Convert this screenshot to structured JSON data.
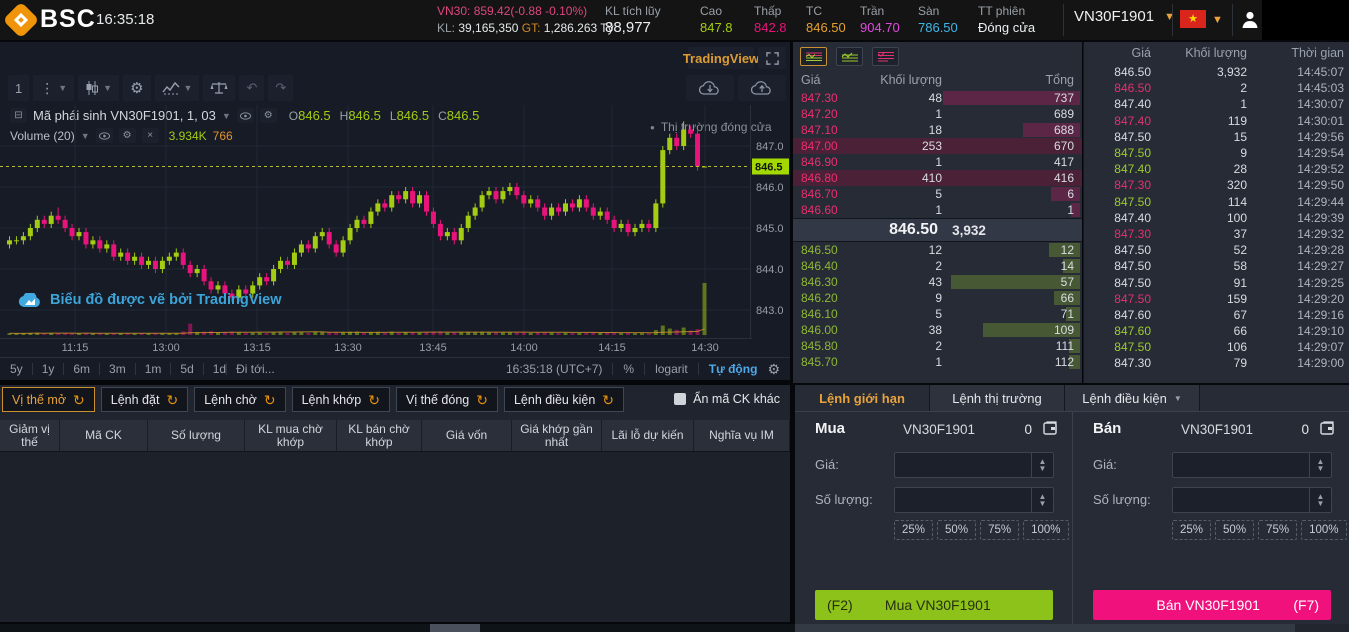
{
  "colors": {
    "up": "#a3cc12",
    "down": "#e9137c",
    "accent_orange": "#e8a33d",
    "link_blue": "#45a7e2",
    "buy_button": "#8dc21a",
    "sell_button": "#f0117d",
    "last_price_label": "#a3d900"
  },
  "topbar": {
    "brand": "BSC",
    "clock": "16:35:18",
    "index": {
      "label": "VN30:",
      "value": "859.42(-0.88 -0.10%)",
      "kl_label": "KL:",
      "kl_value": "39,165,350",
      "gt_label": "GT:",
      "gt_value": "1,286.263 Tỷ"
    },
    "stats": [
      {
        "label": "KL tích lũy",
        "value": "88,977",
        "color": "#eceff1",
        "big": true
      },
      {
        "label": "Cao",
        "value": "847.8",
        "color": "#a3cc12"
      },
      {
        "label": "Thấp",
        "value": "842.8",
        "color": "#e9137c"
      },
      {
        "label": "TC",
        "value": "846.50",
        "color": "#e5a12f"
      },
      {
        "label": "Trần",
        "value": "904.70",
        "color": "#e14ae1"
      },
      {
        "label": "Sàn",
        "value": "786.50",
        "color": "#3eb7e8"
      },
      {
        "label": "TT phiên",
        "value": "Đóng cửa",
        "color": "#eceff1"
      }
    ],
    "symbol_select": "VN30F1901"
  },
  "chart": {
    "badge": "TradingView",
    "interval_button": "1",
    "legend_title": "Mã phái sinh VN30F1901, 1, 03",
    "ohlc": [
      {
        "k": "O",
        "v": "846.5"
      },
      {
        "k": "H",
        "v": "846.5"
      },
      {
        "k": "L",
        "v": "846.5"
      },
      {
        "k": "C",
        "v": "846.5"
      }
    ],
    "volume_label": "Volume (20)",
    "volume_value": "3.934K",
    "volume_ma": "766",
    "market_status": "Thị trường đóng cửa",
    "watermark": "Biểu đồ được vẽ bởi TradingView",
    "footer_ranges": [
      "5y",
      "1y",
      "6m",
      "3m",
      "1m",
      "5d",
      "1d"
    ],
    "footer_goto": "Đi tới...",
    "footer_clock": "16:35:18 (UTC+7)",
    "footer_percent": "%",
    "footer_log": "logarit",
    "footer_auto": "Tự động"
  },
  "chart_data": {
    "type": "candlestick",
    "symbol": "VN30F1901",
    "interval": "1",
    "last_price": 846.5,
    "y_ticks": [
      847.0,
      846.0,
      845.0,
      844.0,
      843.0
    ],
    "x_ticks": [
      {
        "label": "11:15",
        "x": 75
      },
      {
        "label": "13:00",
        "x": 166
      },
      {
        "label": "13:15",
        "x": 257
      },
      {
        "label": "13:30",
        "x": 348
      },
      {
        "label": "13:45",
        "x": 433
      },
      {
        "label": "14:00",
        "x": 524
      },
      {
        "label": "14:15",
        "x": 612
      },
      {
        "label": "14:30",
        "x": 705
      }
    ],
    "candles": [
      [
        844.6,
        844.8,
        844.5,
        844.7,
        60
      ],
      [
        844.7,
        844.8,
        844.6,
        844.7,
        40
      ],
      [
        844.7,
        844.9,
        844.6,
        844.8,
        55
      ],
      [
        844.8,
        845.1,
        844.7,
        845.0,
        80
      ],
      [
        845.0,
        845.3,
        844.9,
        845.2,
        90
      ],
      [
        845.2,
        845.3,
        845.0,
        845.1,
        50
      ],
      [
        845.1,
        845.4,
        845.0,
        845.3,
        70
      ],
      [
        845.3,
        845.5,
        845.1,
        845.2,
        60
      ],
      [
        845.2,
        845.3,
        844.9,
        845.0,
        65
      ],
      [
        845.0,
        845.1,
        844.7,
        844.8,
        70
      ],
      [
        844.8,
        845.0,
        844.7,
        844.9,
        45
      ],
      [
        844.9,
        845.0,
        844.5,
        844.6,
        80
      ],
      [
        844.6,
        844.8,
        844.5,
        844.7,
        40
      ],
      [
        844.7,
        844.8,
        844.4,
        844.5,
        55
      ],
      [
        844.5,
        844.7,
        844.4,
        844.6,
        35
      ],
      [
        844.6,
        844.7,
        844.2,
        844.3,
        75
      ],
      [
        844.3,
        844.5,
        844.2,
        844.4,
        40
      ],
      [
        844.4,
        844.5,
        844.1,
        844.2,
        60
      ],
      [
        844.2,
        844.4,
        844.1,
        844.3,
        35
      ],
      [
        844.3,
        844.4,
        844.0,
        844.1,
        55
      ],
      [
        844.1,
        844.3,
        844.0,
        844.2,
        40
      ],
      [
        844.2,
        844.3,
        843.9,
        844.0,
        65
      ],
      [
        844.0,
        844.3,
        843.9,
        844.2,
        50
      ],
      [
        844.2,
        844.4,
        844.1,
        844.3,
        45
      ],
      [
        844.3,
        844.5,
        844.2,
        844.4,
        40
      ],
      [
        844.4,
        844.5,
        844.0,
        844.1,
        200
      ],
      [
        844.1,
        844.2,
        843.8,
        843.9,
        800
      ],
      [
        843.9,
        844.1,
        843.8,
        844.0,
        150
      ],
      [
        844.0,
        844.1,
        843.6,
        843.7,
        180
      ],
      [
        843.7,
        843.8,
        843.4,
        843.5,
        220
      ],
      [
        843.5,
        843.7,
        843.4,
        843.6,
        120
      ],
      [
        843.6,
        843.7,
        843.3,
        843.4,
        160
      ],
      [
        843.4,
        843.5,
        843.2,
        843.3,
        190
      ],
      [
        843.3,
        843.6,
        843.2,
        843.5,
        140
      ],
      [
        843.5,
        843.6,
        843.3,
        843.4,
        90
      ],
      [
        843.4,
        843.7,
        843.3,
        843.6,
        100
      ],
      [
        843.6,
        843.9,
        843.5,
        843.8,
        110
      ],
      [
        843.8,
        843.9,
        843.6,
        843.7,
        70
      ],
      [
        843.7,
        844.1,
        843.6,
        844.0,
        120
      ],
      [
        844.0,
        844.3,
        843.9,
        844.2,
        130
      ],
      [
        844.2,
        844.3,
        844.0,
        844.1,
        80
      ],
      [
        844.1,
        844.5,
        844.0,
        844.4,
        140
      ],
      [
        844.4,
        844.7,
        844.3,
        844.6,
        150
      ],
      [
        844.6,
        844.7,
        844.4,
        844.5,
        90
      ],
      [
        844.5,
        844.9,
        844.4,
        844.8,
        160
      ],
      [
        844.8,
        845.0,
        844.7,
        844.9,
        170
      ],
      [
        844.9,
        845.0,
        844.5,
        844.6,
        110
      ],
      [
        844.6,
        844.7,
        844.3,
        844.4,
        130
      ],
      [
        844.4,
        844.8,
        844.3,
        844.7,
        140
      ],
      [
        844.7,
        845.1,
        844.6,
        845.0,
        180
      ],
      [
        845.0,
        845.3,
        844.9,
        845.2,
        190
      ],
      [
        845.2,
        845.3,
        845.0,
        845.1,
        100
      ],
      [
        845.1,
        845.5,
        845.0,
        845.4,
        160
      ],
      [
        845.4,
        845.7,
        845.3,
        845.6,
        170
      ],
      [
        845.6,
        845.7,
        845.4,
        845.5,
        90
      ],
      [
        845.5,
        845.9,
        845.4,
        845.8,
        180
      ],
      [
        845.8,
        845.9,
        845.6,
        845.7,
        100
      ],
      [
        845.7,
        846.0,
        845.6,
        845.9,
        150
      ],
      [
        845.9,
        846.0,
        845.5,
        845.6,
        120
      ],
      [
        845.6,
        845.9,
        845.5,
        845.8,
        110
      ],
      [
        845.8,
        845.9,
        845.3,
        845.4,
        170
      ],
      [
        845.4,
        845.5,
        845.0,
        845.1,
        180
      ],
      [
        845.1,
        845.2,
        844.7,
        844.8,
        200
      ],
      [
        844.8,
        845.0,
        844.7,
        844.9,
        110
      ],
      [
        844.9,
        845.0,
        844.6,
        844.7,
        130
      ],
      [
        844.7,
        845.1,
        844.6,
        845.0,
        140
      ],
      [
        845.0,
        845.4,
        844.9,
        845.3,
        160
      ],
      [
        845.3,
        845.6,
        845.2,
        845.5,
        150
      ],
      [
        845.5,
        845.9,
        845.4,
        845.8,
        170
      ],
      [
        845.8,
        846.0,
        845.7,
        845.9,
        140
      ],
      [
        845.9,
        846.0,
        845.6,
        845.7,
        120
      ],
      [
        845.7,
        846.0,
        845.6,
        845.9,
        130
      ],
      [
        845.9,
        846.1,
        845.8,
        846.0,
        140
      ],
      [
        846.0,
        846.1,
        845.7,
        845.8,
        110
      ],
      [
        845.8,
        845.9,
        845.5,
        845.6,
        130
      ],
      [
        845.6,
        845.8,
        845.5,
        845.7,
        90
      ],
      [
        845.7,
        845.8,
        845.4,
        845.5,
        120
      ],
      [
        845.5,
        845.6,
        845.2,
        845.3,
        140
      ],
      [
        845.3,
        845.6,
        845.2,
        845.5,
        100
      ],
      [
        845.5,
        845.6,
        845.3,
        845.4,
        90
      ],
      [
        845.4,
        845.7,
        845.3,
        845.6,
        100
      ],
      [
        845.6,
        845.7,
        845.4,
        845.5,
        80
      ],
      [
        845.5,
        845.8,
        845.4,
        845.7,
        90
      ],
      [
        845.7,
        845.8,
        845.4,
        845.5,
        100
      ],
      [
        845.5,
        845.6,
        845.2,
        845.3,
        120
      ],
      [
        845.3,
        845.5,
        845.2,
        845.4,
        80
      ],
      [
        845.4,
        845.5,
        845.1,
        845.2,
        110
      ],
      [
        845.2,
        845.3,
        844.9,
        845.0,
        130
      ],
      [
        845.0,
        845.2,
        844.9,
        845.1,
        70
      ],
      [
        845.1,
        845.2,
        844.8,
        844.9,
        100
      ],
      [
        844.9,
        845.1,
        844.8,
        845.0,
        60
      ],
      [
        845.0,
        845.2,
        844.9,
        845.1,
        70
      ],
      [
        845.1,
        845.2,
        844.9,
        845.0,
        50
      ],
      [
        845.0,
        845.7,
        844.9,
        845.6,
        300
      ],
      [
        845.6,
        847.0,
        845.5,
        846.9,
        650
      ],
      [
        846.9,
        847.3,
        846.8,
        847.2,
        420
      ],
      [
        847.2,
        847.3,
        846.9,
        847.0,
        320
      ],
      [
        847.0,
        847.6,
        846.9,
        847.4,
        500
      ],
      [
        847.4,
        847.5,
        847.2,
        847.3,
        260
      ],
      [
        847.3,
        847.4,
        846.4,
        846.5,
        380
      ],
      [
        846.5,
        846.5,
        846.5,
        846.5,
        3932
      ]
    ]
  },
  "orderbook": {
    "columns": [
      "Giá",
      "Khối lượng",
      "Tổng"
    ],
    "asks": [
      {
        "price": "847.30",
        "qty": "48",
        "total": "737",
        "bar": 0.48,
        "flash": false
      },
      {
        "price": "847.20",
        "qty": "1",
        "total": "689",
        "bar": 0,
        "flash": false
      },
      {
        "price": "847.10",
        "qty": "18",
        "total": "688",
        "bar": 0.2,
        "flash": false
      },
      {
        "price": "847.00",
        "qty": "253",
        "total": "670",
        "bar": 0,
        "flash": true
      },
      {
        "price": "846.90",
        "qty": "1",
        "total": "417",
        "bar": 0,
        "flash": false
      },
      {
        "price": "846.80",
        "qty": "410",
        "total": "416",
        "bar": 0,
        "flash": true
      },
      {
        "price": "846.70",
        "qty": "5",
        "total": "6",
        "bar": 0.1,
        "flash": false
      },
      {
        "price": "846.60",
        "qty": "1",
        "total": "1",
        "bar": 0.03,
        "flash": false
      }
    ],
    "last": {
      "price": "846.50",
      "qty": "3,932"
    },
    "bids": [
      {
        "price": "846.50",
        "qty": "12",
        "total": "12",
        "bar": 0.11,
        "flash": false
      },
      {
        "price": "846.40",
        "qty": "2",
        "total": "14",
        "bar": 0.06,
        "flash": false
      },
      {
        "price": "846.30",
        "qty": "43",
        "total": "57",
        "bar": 0.45,
        "flash": false
      },
      {
        "price": "846.20",
        "qty": "9",
        "total": "66",
        "bar": 0.09,
        "flash": false
      },
      {
        "price": "846.10",
        "qty": "5",
        "total": "71",
        "bar": 0.05,
        "flash": false
      },
      {
        "price": "846.00",
        "qty": "38",
        "total": "109",
        "bar": 0.34,
        "flash": false
      },
      {
        "price": "845.80",
        "qty": "2",
        "total": "111",
        "bar": 0.04,
        "flash": false
      },
      {
        "price": "845.70",
        "qty": "1",
        "total": "112",
        "bar": 0.04,
        "flash": false
      }
    ]
  },
  "trades": {
    "columns": [
      "Giá",
      "Khối lượng",
      "Thời gian"
    ],
    "rows": [
      {
        "price": "846.50",
        "qty": "3,932",
        "time": "14:45:07",
        "c": "w"
      },
      {
        "price": "846.50",
        "qty": "2",
        "time": "14:45:03",
        "c": "d"
      },
      {
        "price": "847.40",
        "qty": "1",
        "time": "14:30:07",
        "c": "w"
      },
      {
        "price": "847.40",
        "qty": "119",
        "time": "14:30:01",
        "c": "d"
      },
      {
        "price": "847.50",
        "qty": "15",
        "time": "14:29:56",
        "c": "w"
      },
      {
        "price": "847.50",
        "qty": "9",
        "time": "14:29:54",
        "c": "u"
      },
      {
        "price": "847.40",
        "qty": "28",
        "time": "14:29:52",
        "c": "u"
      },
      {
        "price": "847.30",
        "qty": "320",
        "time": "14:29:50",
        "c": "d"
      },
      {
        "price": "847.50",
        "qty": "114",
        "time": "14:29:44",
        "c": "u"
      },
      {
        "price": "847.40",
        "qty": "100",
        "time": "14:29:39",
        "c": "w"
      },
      {
        "price": "847.30",
        "qty": "37",
        "time": "14:29:32",
        "c": "d"
      },
      {
        "price": "847.50",
        "qty": "52",
        "time": "14:29:28",
        "c": "w"
      },
      {
        "price": "847.50",
        "qty": "58",
        "time": "14:29:27",
        "c": "w"
      },
      {
        "price": "847.50",
        "qty": "91",
        "time": "14:29:25",
        "c": "w"
      },
      {
        "price": "847.50",
        "qty": "159",
        "time": "14:29:20",
        "c": "d"
      },
      {
        "price": "847.60",
        "qty": "67",
        "time": "14:29:16",
        "c": "w"
      },
      {
        "price": "847.60",
        "qty": "66",
        "time": "14:29:10",
        "c": "u"
      },
      {
        "price": "847.50",
        "qty": "106",
        "time": "14:29:07",
        "c": "u"
      },
      {
        "price": "847.30",
        "qty": "79",
        "time": "14:29:00",
        "c": "w"
      }
    ]
  },
  "positions": {
    "tabs": [
      {
        "label": "Vị thế mở",
        "active": true
      },
      {
        "label": "Lệnh đặt",
        "active": false
      },
      {
        "label": "Lệnh chờ",
        "active": false
      },
      {
        "label": "Lệnh khớp",
        "active": false
      },
      {
        "label": "Vị thế đóng",
        "active": false
      },
      {
        "label": "Lệnh điều kiện",
        "active": false
      }
    ],
    "hide_other_label": "Ẩn mã CK khác",
    "columns": [
      "Giảm vị thế",
      "Mã CK",
      "Số lượng",
      "KL mua chờ khớp",
      "KL bán chờ khớp",
      "Giá vốn",
      "Giá khớp gần nhất",
      "Lãi lỗ dự kiến",
      "Nghĩa vụ IM"
    ]
  },
  "order_entry": {
    "tabs": [
      {
        "label": "Lệnh giới hạn",
        "active": true,
        "caret": false
      },
      {
        "label": "Lệnh thị trường",
        "active": false,
        "caret": false
      },
      {
        "label": "Lệnh điều kiện",
        "active": false,
        "caret": true
      }
    ],
    "buy": {
      "side": "Mua",
      "symbol": "VN30F1901",
      "available": "0",
      "price_label": "Giá:",
      "qty_label": "Số lượng:",
      "percents": [
        "25%",
        "50%",
        "75%",
        "100%"
      ],
      "hotkey": "(F2)",
      "button": "Mua VN30F1901"
    },
    "sell": {
      "side": "Bán",
      "symbol": "VN30F1901",
      "available": "0",
      "price_label": "Giá:",
      "qty_label": "Số lượng:",
      "percents": [
        "25%",
        "50%",
        "75%",
        "100%"
      ],
      "hotkey": "(F7)",
      "button": "Bán VN30F1901"
    }
  }
}
